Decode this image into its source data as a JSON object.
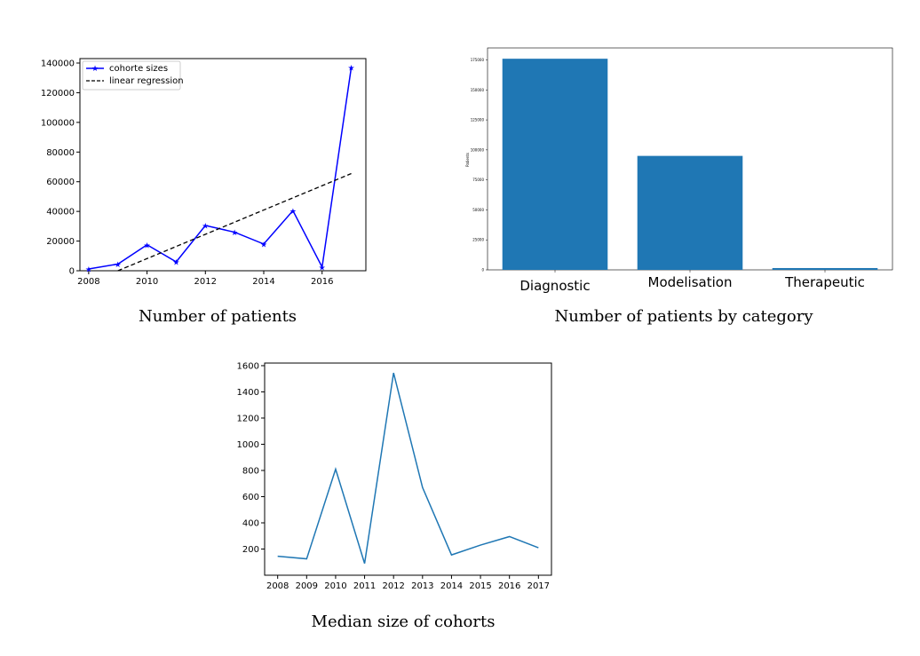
{
  "captions": {
    "fig1": "Number of patients",
    "fig2": "Number of patients by category",
    "fig3": "Median size of cohorts"
  },
  "chart_data": [
    {
      "type": "line",
      "x": [
        2008,
        2009,
        2010,
        2011,
        2012,
        2013,
        2014,
        2015,
        2016,
        2017
      ],
      "series": [
        {
          "name": "cohorte sizes",
          "values": [
            1200,
            4500,
            17500,
            6000,
            30500,
            26000,
            18000,
            40500,
            2500,
            137000
          ],
          "color": "#0000ff",
          "marker": "star"
        },
        {
          "name": "linear regression",
          "x": [
            2009,
            2017
          ],
          "values": [
            0,
            65500
          ],
          "color": "#000000",
          "style": "dashed"
        }
      ],
      "xlim": [
        2007.7,
        2017.5
      ],
      "ylim": [
        0,
        143000
      ],
      "xticks": [
        "2008",
        "2010",
        "2012",
        "2014",
        "2016"
      ],
      "yticks": [
        "0",
        "20000",
        "40000",
        "60000",
        "80000",
        "100000",
        "120000",
        "140000"
      ],
      "legend": "top-left",
      "grid": false
    },
    {
      "type": "bar",
      "categories": [
        "Diagnostic",
        "Modelisation",
        "Therapeutic"
      ],
      "values": [
        176000,
        95000,
        1500
      ],
      "color": "#1f77b4",
      "ylabel": "Patients",
      "ylim": [
        0,
        185000
      ],
      "yticks": [
        "0",
        "25000",
        "50000",
        "75000",
        "100000",
        "125000",
        "150000",
        "175000"
      ],
      "grid": false
    },
    {
      "type": "line",
      "categories": [
        "2008",
        "2009",
        "2010",
        "2011",
        "2012",
        "2013",
        "2014",
        "2015",
        "2016",
        "2017"
      ],
      "values": [
        145,
        125,
        810,
        90,
        1545,
        670,
        155,
        230,
        295,
        210
      ],
      "color": "#1f77b4",
      "ylim": [
        0,
        1620
      ],
      "yticks": [
        "200",
        "400",
        "600",
        "800",
        "1000",
        "1200",
        "1400",
        "1600"
      ],
      "grid": false
    }
  ]
}
